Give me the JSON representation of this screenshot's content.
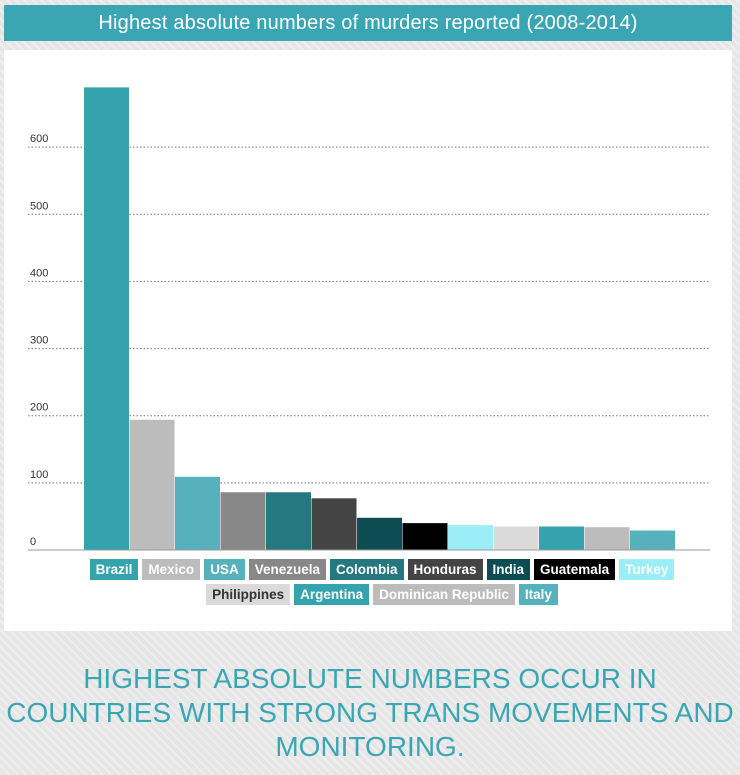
{
  "header": {
    "title": "Highest absolute numbers of murders reported (2008-2014)"
  },
  "chart_data": {
    "type": "bar",
    "title": "Highest absolute numbers of murders reported (2008-2014)",
    "xlabel": "",
    "ylabel": "",
    "ylim": [
      0,
      700
    ],
    "yticks": [
      0,
      100,
      200,
      300,
      400,
      500,
      600
    ],
    "grid": true,
    "legend_position": "bottom",
    "categories": [
      "Brazil",
      "Mexico",
      "USA",
      "Venezuela",
      "Colombia",
      "Honduras",
      "India",
      "Guatemala",
      "Turkey",
      "Philippines",
      "Argentina",
      "Dominican Republic",
      "Italy"
    ],
    "values": [
      689,
      194,
      109,
      86,
      86,
      77,
      48,
      40,
      37,
      35,
      35,
      34,
      29
    ],
    "colors": [
      "#34a3ae",
      "#bcbcbc",
      "#56b1bd",
      "#888888",
      "#257780",
      "#444444",
      "#0d4c52",
      "#000000",
      "#9beef8",
      "#dadada",
      "#34a3ae",
      "#bcbcbc",
      "#56b1bd"
    ],
    "label_colors": [
      "#ffffff",
      "#ffffff",
      "#ffffff",
      "#ffffff",
      "#ffffff",
      "#ffffff",
      "#ffffff",
      "#ffffff",
      "#ffffff",
      "#333333",
      "#ffffff",
      "#ffffff",
      "#ffffff"
    ]
  },
  "footer": {
    "headline": "HIGHEST ABSOLUTE NUMBERS OCCUR IN COUNTRIES WITH STRONG TRANS MOVEMENTS AND MONITORING."
  }
}
